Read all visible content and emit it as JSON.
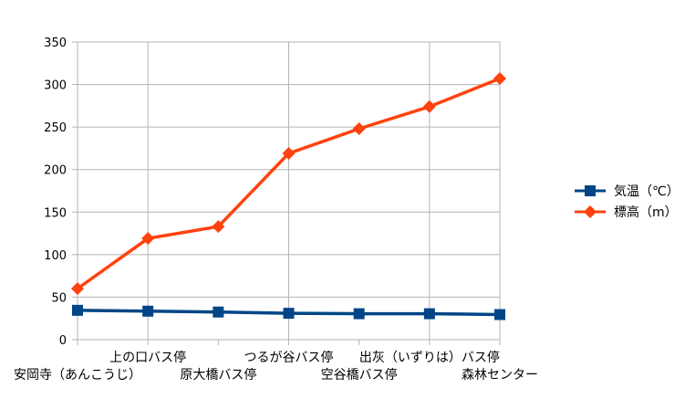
{
  "chart_data": {
    "type": "line",
    "categories": [
      "安岡寺（あんこうじ）",
      "上の口バス停",
      "原大橋バス停",
      "つるが谷バス停",
      "空谷橋バス停",
      "出灰（いずりは）バス停",
      "森林センター"
    ],
    "series": [
      {
        "name": "気温（℃）",
        "values": [
          34.5,
          33.5,
          32.5,
          31,
          30.5,
          30.5,
          29.5
        ],
        "color": "#004586",
        "marker": "square"
      },
      {
        "name": "標高（m）",
        "values": [
          60,
          119,
          133,
          219,
          248,
          274,
          307
        ],
        "color": "#ff420e",
        "marker": "diamond"
      }
    ],
    "ylim": [
      0,
      350
    ],
    "yticks": [
      0,
      50,
      100,
      150,
      200,
      250,
      300,
      350
    ],
    "grid": true,
    "legend": "right"
  }
}
